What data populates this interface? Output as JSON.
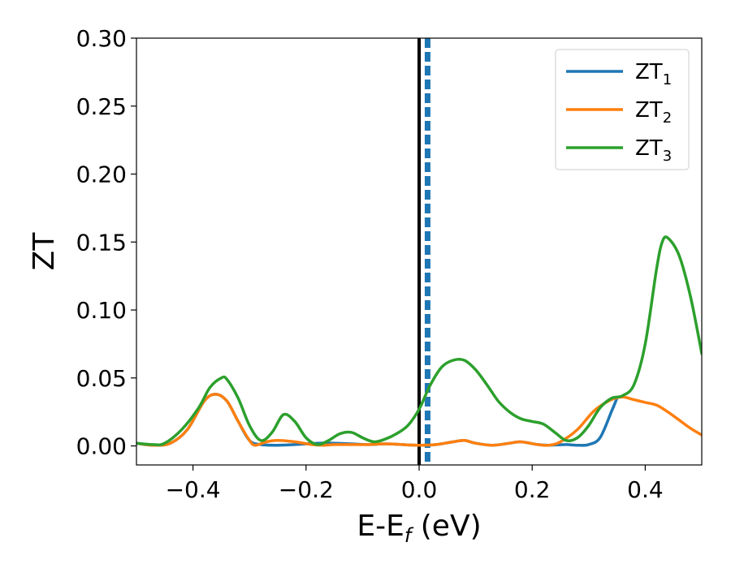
{
  "chart_data": {
    "type": "line",
    "xlabel": {
      "main": "E-E",
      "sub": "f",
      "unit": " (eV)"
    },
    "ylabel": "ZT",
    "xlim": [
      -0.5,
      0.5
    ],
    "ylim": [
      -0.014,
      0.3
    ],
    "x_ticks": [
      -0.4,
      -0.2,
      0.0,
      0.2,
      0.4
    ],
    "x_tick_labels": [
      "−0.4",
      "−0.2",
      "0.0",
      "0.2",
      "0.4"
    ],
    "y_ticks": [
      0.0,
      0.05,
      0.1,
      0.15,
      0.2,
      0.25,
      0.3
    ],
    "y_tick_labels": [
      "0.00",
      "0.05",
      "0.10",
      "0.15",
      "0.20",
      "0.25",
      "0.30"
    ],
    "grid": false,
    "legend_position": "top-right",
    "reference_lines": [
      {
        "orientation": "vertical",
        "x": 0.0,
        "style": "solid",
        "color": "#000000"
      },
      {
        "orientation": "vertical",
        "x": 0.015,
        "style": "dashed",
        "color": "#1f77b4"
      }
    ],
    "series": [
      {
        "name": "ZT",
        "sub": "1",
        "color": "#1f77b4",
        "x": [
          -0.5,
          -0.47,
          -0.44,
          -0.41,
          -0.38,
          -0.36,
          -0.34,
          -0.32,
          -0.3,
          -0.28,
          -0.25,
          -0.22,
          -0.18,
          -0.15,
          -0.12,
          -0.09,
          -0.06,
          -0.03,
          0.0,
          0.03,
          0.06,
          0.08,
          0.1,
          0.13,
          0.16,
          0.18,
          0.21,
          0.23,
          0.26,
          0.28,
          0.3,
          0.32,
          0.34,
          0.35
        ],
        "y": [
          0.002,
          0.0005,
          0.002,
          0.012,
          0.033,
          0.038,
          0.033,
          0.018,
          0.004,
          0.001,
          0.0005,
          0.001,
          0.002,
          0.002,
          0.0015,
          0.001,
          0.0015,
          0.001,
          0.0005,
          0.001,
          0.003,
          0.004,
          0.002,
          0.0005,
          0.002,
          0.003,
          0.001,
          0.0005,
          0.001,
          0.0005,
          0.001,
          0.006,
          0.025,
          0.035
        ]
      },
      {
        "name": "ZT",
        "sub": "2",
        "color": "#ff7f0e",
        "x": [
          -0.5,
          -0.47,
          -0.44,
          -0.41,
          -0.38,
          -0.36,
          -0.34,
          -0.32,
          -0.3,
          -0.29,
          -0.27,
          -0.25,
          -0.22,
          -0.19,
          -0.17,
          -0.15,
          -0.12,
          -0.09,
          -0.06,
          -0.03,
          0.0,
          0.03,
          0.06,
          0.08,
          0.1,
          0.13,
          0.16,
          0.18,
          0.21,
          0.23,
          0.25,
          0.28,
          0.31,
          0.34,
          0.36,
          0.38,
          0.4,
          0.42,
          0.44,
          0.46,
          0.48,
          0.5
        ],
        "y": [
          0.002,
          0.0005,
          0.002,
          0.012,
          0.033,
          0.038,
          0.033,
          0.018,
          0.004,
          0.0005,
          0.003,
          0.004,
          0.003,
          0.001,
          0.0005,
          0.001,
          0.001,
          0.001,
          0.0015,
          0.001,
          0.0005,
          0.001,
          0.003,
          0.004,
          0.002,
          0.0005,
          0.002,
          0.003,
          0.001,
          0.0005,
          0.003,
          0.012,
          0.026,
          0.034,
          0.036,
          0.034,
          0.032,
          0.03,
          0.025,
          0.019,
          0.013,
          0.008
        ]
      },
      {
        "name": "ZT",
        "sub": "3",
        "color": "#2ca02c",
        "x": [
          -0.5,
          -0.47,
          -0.45,
          -0.42,
          -0.39,
          -0.37,
          -0.35,
          -0.34,
          -0.32,
          -0.3,
          -0.28,
          -0.26,
          -0.24,
          -0.22,
          -0.2,
          -0.18,
          -0.16,
          -0.14,
          -0.12,
          -0.1,
          -0.08,
          -0.06,
          -0.04,
          -0.02,
          0.0,
          0.02,
          0.04,
          0.06,
          0.08,
          0.1,
          0.12,
          0.14,
          0.16,
          0.18,
          0.2,
          0.22,
          0.24,
          0.26,
          0.28,
          0.3,
          0.32,
          0.34,
          0.36,
          0.38,
          0.4,
          0.42,
          0.43,
          0.44,
          0.46,
          0.48,
          0.5
        ],
        "y": [
          0.002,
          0.001,
          0.002,
          0.012,
          0.028,
          0.043,
          0.05,
          0.049,
          0.035,
          0.015,
          0.004,
          0.01,
          0.023,
          0.018,
          0.006,
          0.001,
          0.004,
          0.009,
          0.01,
          0.006,
          0.003,
          0.005,
          0.009,
          0.015,
          0.027,
          0.045,
          0.058,
          0.063,
          0.063,
          0.056,
          0.045,
          0.033,
          0.025,
          0.02,
          0.018,
          0.016,
          0.01,
          0.004,
          0.006,
          0.015,
          0.028,
          0.035,
          0.037,
          0.045,
          0.075,
          0.13,
          0.15,
          0.153,
          0.14,
          0.11,
          0.068
        ]
      }
    ]
  }
}
